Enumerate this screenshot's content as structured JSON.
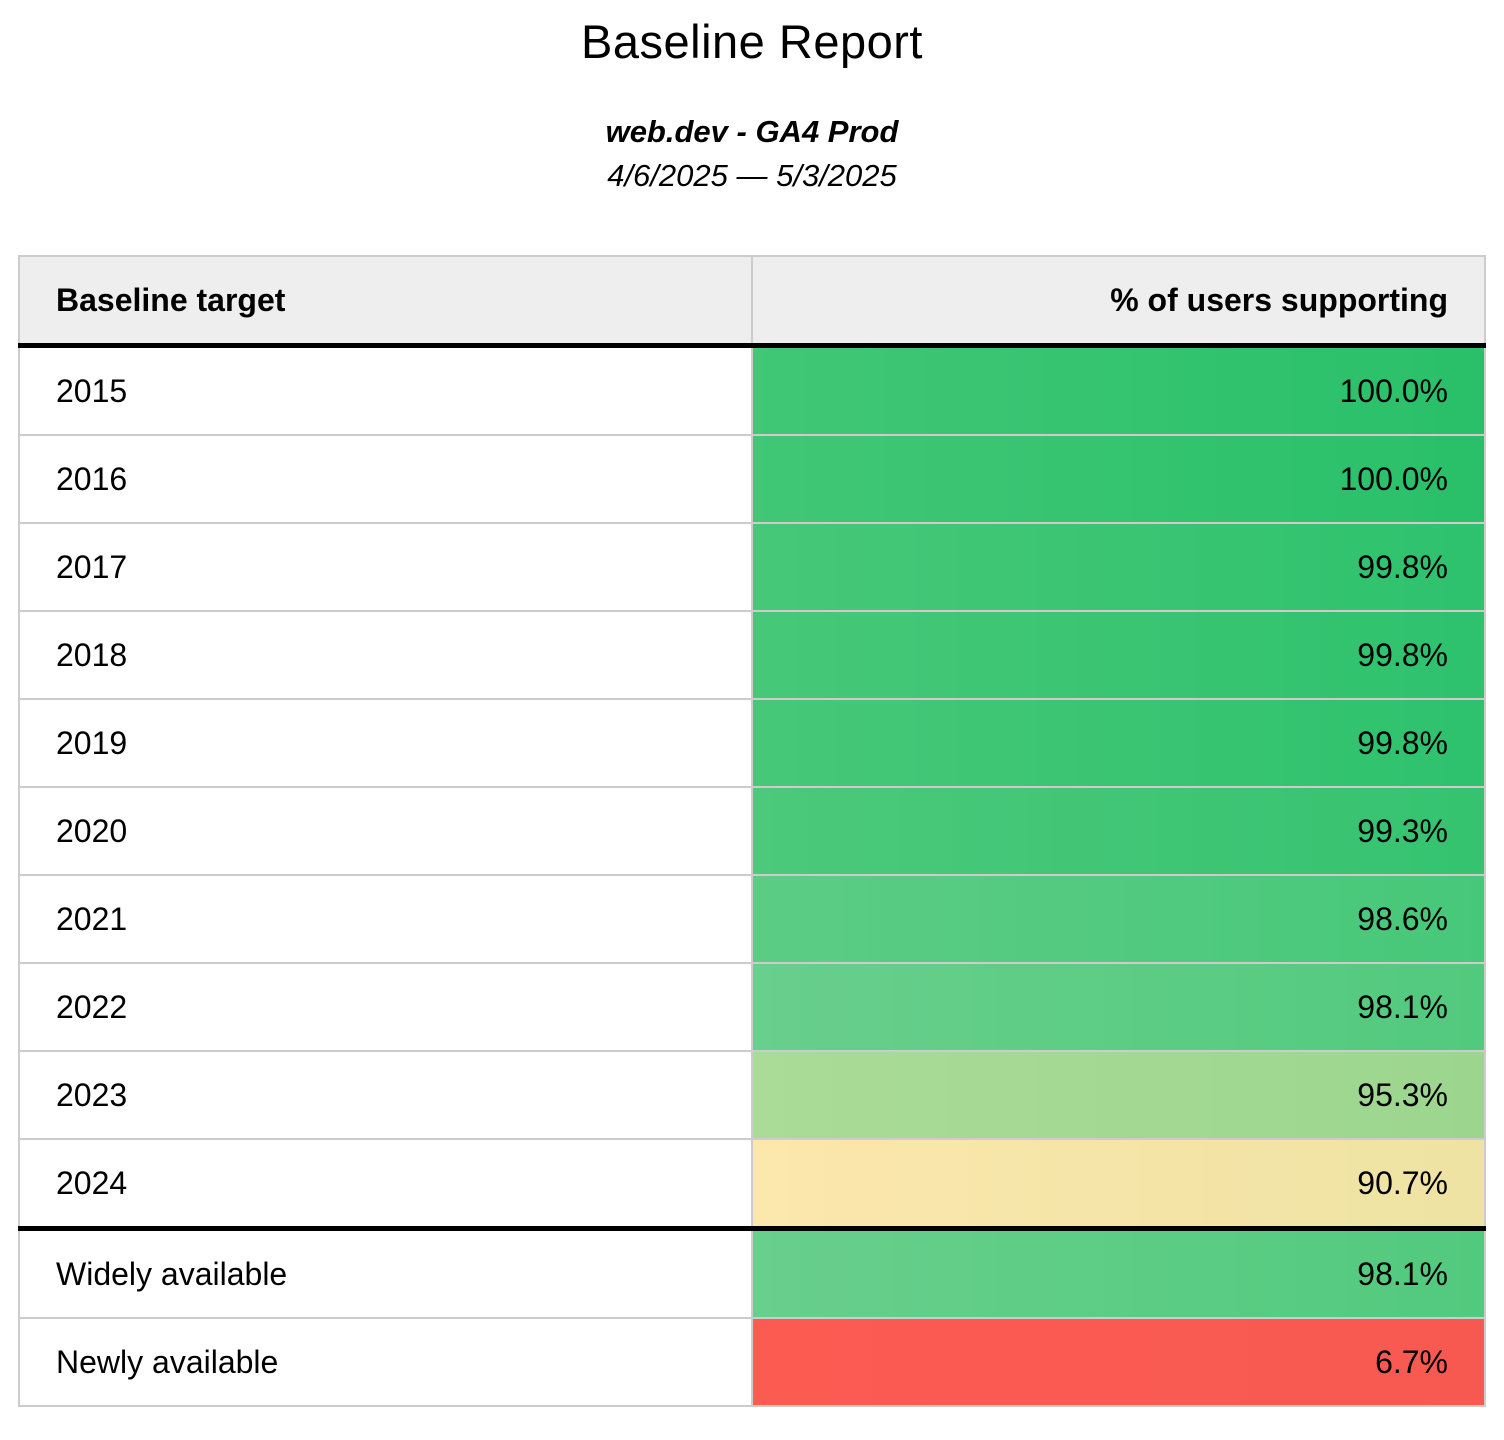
{
  "report": {
    "title": "Baseline Report",
    "subtitle": "web.dev - GA4 Prod",
    "date_range": "4/6/2025 — 5/3/2025"
  },
  "table": {
    "columns": [
      {
        "label": "Baseline target",
        "align": "left"
      },
      {
        "label": "% of users supporting",
        "align": "right"
      }
    ],
    "year_rows": [
      {
        "label": "2015",
        "value": "100.0%",
        "color_from": "#41c776",
        "color_to": "#29c069"
      },
      {
        "label": "2016",
        "value": "100.0%",
        "color_from": "#41c776",
        "color_to": "#29c069"
      },
      {
        "label": "2017",
        "value": "99.8%",
        "color_from": "#46c878",
        "color_to": "#2ec26d"
      },
      {
        "label": "2018",
        "value": "99.8%",
        "color_from": "#46c878",
        "color_to": "#2ec26d"
      },
      {
        "label": "2019",
        "value": "99.8%",
        "color_from": "#46c878",
        "color_to": "#2ec26d"
      },
      {
        "label": "2020",
        "value": "99.3%",
        "color_from": "#4cc97b",
        "color_to": "#35c370"
      },
      {
        "label": "2021",
        "value": "98.6%",
        "color_from": "#5ccc85",
        "color_to": "#47c879"
      },
      {
        "label": "2022",
        "value": "98.1%",
        "color_from": "#68cf8c",
        "color_to": "#52ca7e"
      },
      {
        "label": "2023",
        "value": "95.3%",
        "color_from": "#aadb97",
        "color_to": "#9cd68e"
      },
      {
        "label": "2024",
        "value": "90.7%",
        "color_from": "#fce7ac",
        "color_to": "#eee3a3"
      }
    ],
    "summary_rows": [
      {
        "label": "Widely available",
        "value": "98.1%",
        "color_from": "#68cf8c",
        "color_to": "#52ca7e"
      },
      {
        "label": "Newly available",
        "value": "6.7%",
        "color_from": "#fc5b52",
        "color_to": "#f75951"
      }
    ]
  },
  "chart_data": {
    "type": "table",
    "title": "Baseline Report",
    "subtitle": "web.dev - GA4 Prod",
    "date_range": "4/6/2025 — 5/3/2025",
    "columns": [
      "Baseline target",
      "% of users supporting"
    ],
    "categories": [
      "2015",
      "2016",
      "2017",
      "2018",
      "2019",
      "2020",
      "2021",
      "2022",
      "2023",
      "2024",
      "Widely available",
      "Newly available"
    ],
    "values": [
      100.0,
      100.0,
      99.8,
      99.8,
      99.8,
      99.3,
      98.6,
      98.1,
      95.3,
      90.7,
      98.1,
      6.7
    ],
    "value_unit": "%",
    "color_scale": "red-yellow-green heatmap per cell"
  },
  "colors": {
    "header_bg": "#eeeeee",
    "grid_border": "#cccccc",
    "section_border": "#000000",
    "text": "#000000",
    "green_high": "#2ec26d",
    "green_low": "#9cd68e",
    "yellow_mid": "#fce7ac",
    "red_low": "#fc5b52"
  }
}
